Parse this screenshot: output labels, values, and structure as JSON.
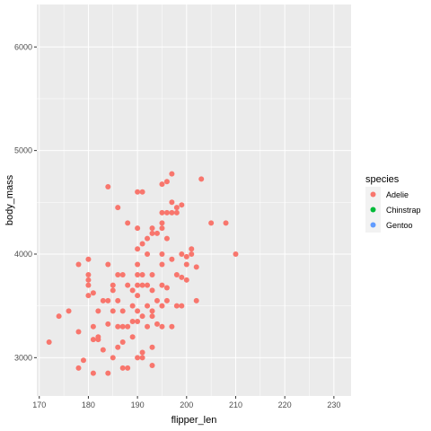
{
  "chart_data": {
    "type": "scatter",
    "title": "",
    "xlabel": "flipper_len",
    "ylabel": "body_mass",
    "xlim": [
      169.5,
      233.5
    ],
    "ylim": [
      2630,
      6410
    ],
    "x_ticks": [
      170,
      180,
      190,
      200,
      210,
      220,
      230
    ],
    "y_ticks": [
      3000,
      4000,
      5000,
      6000
    ],
    "grid": true,
    "legend": {
      "title": "species",
      "position": "right",
      "entries": [
        {
          "name": "Adelie",
          "color": "#F8766D"
        },
        {
          "name": "Chinstrap",
          "color": "#00BA38"
        },
        {
          "name": "Gentoo",
          "color": "#619CFF"
        }
      ]
    },
    "series": [
      {
        "name": "Adelie",
        "color": "#F8766D",
        "points": [
          [
            172,
            3150
          ],
          [
            174,
            3400
          ],
          [
            176,
            3450
          ],
          [
            178,
            2900
          ],
          [
            178,
            3250
          ],
          [
            178,
            3900
          ],
          [
            179,
            2975
          ],
          [
            180,
            3700
          ],
          [
            180,
            3750
          ],
          [
            180,
            3800
          ],
          [
            180,
            3950
          ],
          [
            180,
            3600
          ],
          [
            181,
            2850
          ],
          [
            181,
            3175
          ],
          [
            181,
            3300
          ],
          [
            181,
            3625
          ],
          [
            182,
            3175
          ],
          [
            182,
            3450
          ],
          [
            182,
            3200
          ],
          [
            183,
            3075
          ],
          [
            183,
            3550
          ],
          [
            184,
            2850
          ],
          [
            184,
            3325
          ],
          [
            184,
            3550
          ],
          [
            184,
            3900
          ],
          [
            184,
            4650
          ],
          [
            185,
            3650
          ],
          [
            185,
            3700
          ],
          [
            185,
            3000
          ],
          [
            185,
            3450
          ],
          [
            186,
            3100
          ],
          [
            186,
            3300
          ],
          [
            186,
            3550
          ],
          [
            186,
            3800
          ],
          [
            186,
            4450
          ],
          [
            187,
            2900
          ],
          [
            187,
            3800
          ],
          [
            187,
            3300
          ],
          [
            187,
            3450
          ],
          [
            187,
            3150
          ],
          [
            188,
            2900
          ],
          [
            188,
            3300
          ],
          [
            188,
            3700
          ],
          [
            188,
            4300
          ],
          [
            189,
            3200
          ],
          [
            189,
            3350
          ],
          [
            189,
            3500
          ],
          [
            189,
            3650
          ],
          [
            190,
            3000
          ],
          [
            190,
            3350
          ],
          [
            190,
            3450
          ],
          [
            190,
            3600
          ],
          [
            190,
            3800
          ],
          [
            190,
            3900
          ],
          [
            190,
            4050
          ],
          [
            190,
            4250
          ],
          [
            190,
            4600
          ],
          [
            190,
            3700
          ],
          [
            191,
            3050
          ],
          [
            191,
            3400
          ],
          [
            191,
            3700
          ],
          [
            191,
            3800
          ],
          [
            191,
            4100
          ],
          [
            191,
            4600
          ],
          [
            191,
            3000
          ],
          [
            192,
            3500
          ],
          [
            192,
            3700
          ],
          [
            192,
            4000
          ],
          [
            192,
            4150
          ],
          [
            192,
            3300
          ],
          [
            193,
            3400
          ],
          [
            193,
            2925
          ],
          [
            193,
            3100
          ],
          [
            193,
            3450
          ],
          [
            193,
            3800
          ],
          [
            193,
            4200
          ],
          [
            193,
            4250
          ],
          [
            193,
            3650
          ],
          [
            194,
            3550
          ],
          [
            194,
            4200
          ],
          [
            194,
            3325
          ],
          [
            195,
            3300
          ],
          [
            195,
            3700
          ],
          [
            195,
            3900
          ],
          [
            195,
            4000
          ],
          [
            195,
            4250
          ],
          [
            195,
            4300
          ],
          [
            195,
            4400
          ],
          [
            195,
            4675
          ],
          [
            195,
            3500
          ],
          [
            196,
            3550
          ],
          [
            196,
            4150
          ],
          [
            196,
            3675
          ],
          [
            196,
            4400
          ],
          [
            196,
            4700
          ],
          [
            197,
            3300
          ],
          [
            197,
            4500
          ],
          [
            197,
            4775
          ],
          [
            197,
            4400
          ],
          [
            197,
            3950
          ],
          [
            198,
            3500
          ],
          [
            198,
            3800
          ],
          [
            198,
            4450
          ],
          [
            198,
            4400
          ],
          [
            199,
            3500
          ],
          [
            199,
            4000
          ],
          [
            199,
            4475
          ],
          [
            199,
            3775
          ],
          [
            200,
            3750
          ],
          [
            200,
            3900
          ],
          [
            200,
            3975
          ],
          [
            201,
            4000
          ],
          [
            201,
            4050
          ],
          [
            202,
            3550
          ],
          [
            202,
            3875
          ],
          [
            203,
            4725
          ],
          [
            205,
            4300
          ],
          [
            208,
            4300
          ],
          [
            210,
            4000
          ]
        ]
      },
      {
        "name": "Chinstrap",
        "color": "#00BA38",
        "points": []
      },
      {
        "name": "Gentoo",
        "color": "#619CFF",
        "points": []
      }
    ]
  }
}
